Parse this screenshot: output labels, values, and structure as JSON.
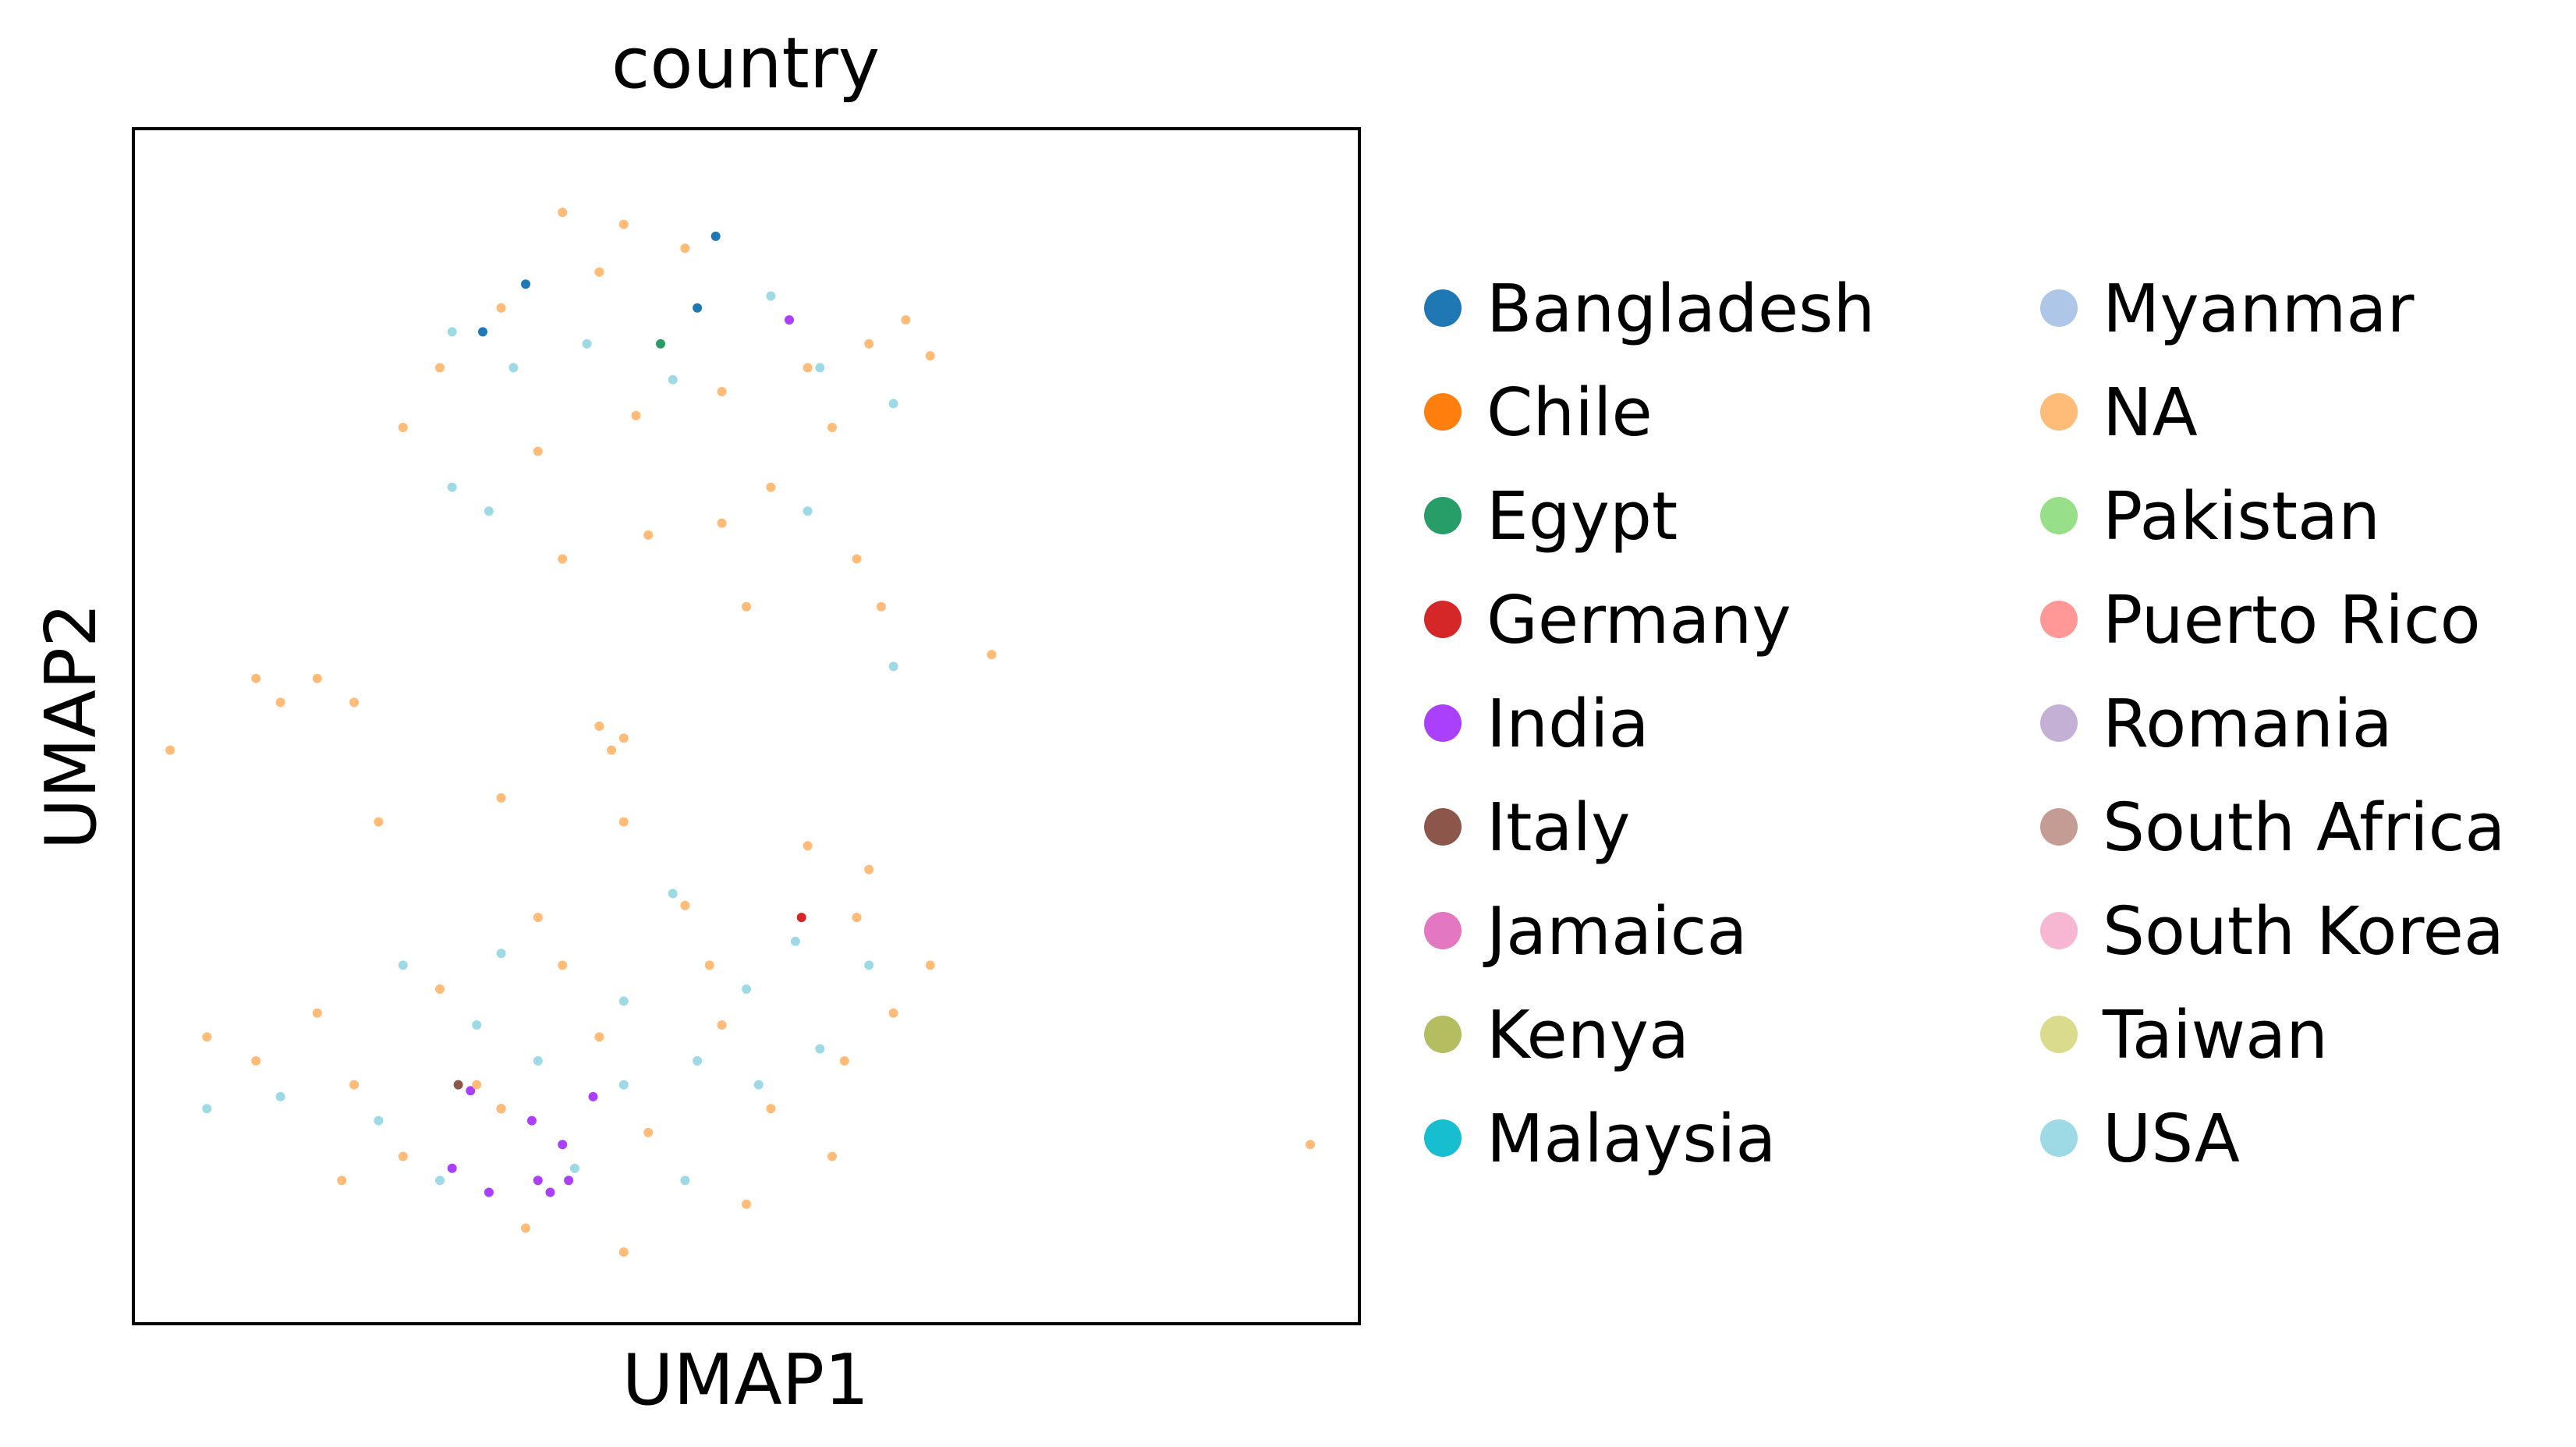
{
  "chart_data": {
    "type": "scatter",
    "title": "country",
    "xlabel": "UMAP1",
    "ylabel": "UMAP2",
    "xlim": [
      0,
      100
    ],
    "ylim": [
      0,
      100
    ],
    "grid": false,
    "xticks": [],
    "yticks": [],
    "legend_placement": "right, outside plot area, two columns",
    "legend_title": "",
    "series": [
      {
        "name": "Bangladesh",
        "color": "#1f77b4",
        "points": [
          [
            47.5,
            91
          ],
          [
            32,
            87
          ],
          [
            28.5,
            83
          ],
          [
            46,
            85
          ]
        ]
      },
      {
        "name": "Chile",
        "color": "#ff7f0e",
        "points": []
      },
      {
        "name": "Egypt",
        "color": "#279e68",
        "points": [
          [
            43,
            82
          ]
        ]
      },
      {
        "name": "Germany",
        "color": "#d62728",
        "points": [
          [
            54.5,
            34
          ]
        ]
      },
      {
        "name": "India",
        "color": "#aa40fc",
        "points": [
          [
            53.5,
            84
          ],
          [
            26,
            13
          ],
          [
            27.5,
            19.5
          ],
          [
            30,
            18
          ],
          [
            32.5,
            17
          ],
          [
            35,
            15
          ],
          [
            37.5,
            19
          ],
          [
            33,
            12
          ],
          [
            34,
            11
          ],
          [
            35.5,
            12
          ],
          [
            29,
            11
          ]
        ]
      },
      {
        "name": "Italy",
        "color": "#8c564b",
        "points": [
          [
            26.5,
            20
          ]
        ]
      },
      {
        "name": "Jamaica",
        "color": "#e377c2",
        "points": []
      },
      {
        "name": "Kenya",
        "color": "#b5bd61",
        "points": []
      },
      {
        "name": "Malaysia",
        "color": "#17becf",
        "points": []
      },
      {
        "name": "Myanmar",
        "color": "#aec7e8",
        "points": []
      },
      {
        "name": "NA",
        "color": "#ffbb78",
        "points": [
          [
            35,
            93
          ],
          [
            40,
            92
          ],
          [
            45,
            90
          ],
          [
            38,
            88
          ],
          [
            30,
            85
          ],
          [
            25,
            80
          ],
          [
            22,
            75
          ],
          [
            33,
            73
          ],
          [
            41,
            76
          ],
          [
            48,
            78
          ],
          [
            55,
            80
          ],
          [
            60,
            82
          ],
          [
            63,
            84
          ],
          [
            65,
            81
          ],
          [
            57,
            75
          ],
          [
            52,
            70
          ],
          [
            48,
            67
          ],
          [
            42,
            66
          ],
          [
            35,
            64
          ],
          [
            50,
            60
          ],
          [
            59,
            64
          ],
          [
            61,
            60
          ],
          [
            70,
            56
          ],
          [
            3,
            48
          ],
          [
            10,
            54
          ],
          [
            12,
            52
          ],
          [
            15,
            54
          ],
          [
            18,
            52
          ],
          [
            38,
            50
          ],
          [
            39,
            48
          ],
          [
            40,
            49
          ],
          [
            96,
            15
          ],
          [
            20,
            42
          ],
          [
            30,
            44
          ],
          [
            40,
            42
          ],
          [
            55,
            40
          ],
          [
            60,
            38
          ],
          [
            45,
            35
          ],
          [
            35,
            30
          ],
          [
            25,
            28
          ],
          [
            15,
            26
          ],
          [
            6,
            24
          ],
          [
            10,
            22
          ],
          [
            18,
            20
          ],
          [
            30,
            18
          ],
          [
            42,
            16
          ],
          [
            52,
            18
          ],
          [
            58,
            22
          ],
          [
            62,
            26
          ],
          [
            65,
            30
          ],
          [
            59,
            34
          ],
          [
            48,
            25
          ],
          [
            38,
            24
          ],
          [
            28,
            20
          ],
          [
            22,
            14
          ],
          [
            17,
            12
          ],
          [
            32,
            8
          ],
          [
            40,
            6
          ],
          [
            50,
            10
          ],
          [
            57,
            14
          ],
          [
            47,
            30
          ],
          [
            33,
            34
          ]
        ]
      },
      {
        "name": "Pakistan",
        "color": "#98df8a",
        "points": []
      },
      {
        "name": "Puerto Rico",
        "color": "#ff9896",
        "points": []
      },
      {
        "name": "Romania",
        "color": "#c5b0d5",
        "points": []
      },
      {
        "name": "South Africa",
        "color": "#c49c94",
        "points": []
      },
      {
        "name": "South Korea",
        "color": "#f7b6d2",
        "points": []
      },
      {
        "name": "Taiwan",
        "color": "#dbdb8d",
        "points": []
      },
      {
        "name": "USA",
        "color": "#9edae5",
        "points": [
          [
            26,
            83
          ],
          [
            31,
            80
          ],
          [
            37,
            82
          ],
          [
            44,
            79
          ],
          [
            52,
            86
          ],
          [
            56,
            80
          ],
          [
            62,
            77
          ],
          [
            26,
            70
          ],
          [
            29,
            68
          ],
          [
            55,
            68
          ],
          [
            62,
            55
          ],
          [
            22,
            30
          ],
          [
            28,
            25
          ],
          [
            33,
            22
          ],
          [
            40,
            27
          ],
          [
            46,
            22
          ],
          [
            51,
            20
          ],
          [
            56,
            23
          ],
          [
            60,
            30
          ],
          [
            20,
            17
          ],
          [
            25,
            12
          ],
          [
            36,
            13
          ],
          [
            45,
            12
          ],
          [
            12,
            19
          ],
          [
            6,
            18
          ],
          [
            40,
            20
          ],
          [
            50,
            28
          ],
          [
            30,
            31
          ],
          [
            44,
            36
          ],
          [
            54,
            32
          ]
        ]
      }
    ]
  }
}
